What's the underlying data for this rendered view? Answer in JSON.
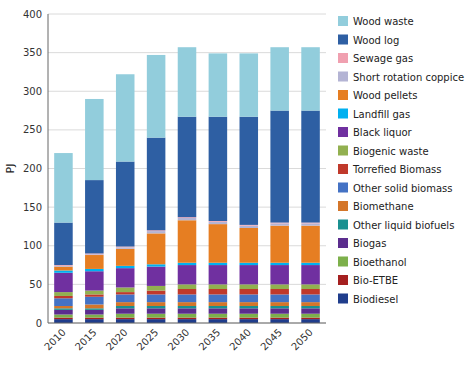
{
  "chart_data": {
    "type": "bar",
    "stacked": true,
    "ylabel": "PJ",
    "categories": [
      "2010",
      "2015",
      "2020",
      "2025",
      "2030",
      "2035",
      "2040",
      "2045",
      "2050"
    ],
    "series": [
      {
        "name": "Biodiesel",
        "color": "#1f3d8c",
        "values": [
          5,
          5,
          5,
          5,
          5,
          5,
          5,
          5,
          5
        ]
      },
      {
        "name": "Bio-ETBE",
        "color": "#a52020",
        "values": [
          2,
          2,
          2,
          2,
          2,
          2,
          2,
          2,
          2
        ]
      },
      {
        "name": "Bioethanol",
        "color": "#7db04b",
        "values": [
          4,
          4,
          5,
          5,
          5,
          5,
          5,
          5,
          5
        ]
      },
      {
        "name": "Biogas",
        "color": "#5b2d8e",
        "values": [
          6,
          6,
          7,
          7,
          7,
          7,
          7,
          7,
          7
        ]
      },
      {
        "name": "Other liquid biofuels",
        "color": "#1a9090",
        "values": [
          2,
          2,
          3,
          3,
          3,
          3,
          3,
          3,
          3
        ]
      },
      {
        "name": "Biomethane",
        "color": "#d4762a",
        "values": [
          3,
          5,
          5,
          5,
          5,
          5,
          5,
          5,
          5
        ]
      },
      {
        "name": "Other solid biomass",
        "color": "#4472c4",
        "values": [
          10,
          10,
          10,
          10,
          10,
          10,
          10,
          10,
          10
        ]
      },
      {
        "name": "Torrefied Biomass",
        "color": "#c0392b",
        "values": [
          3,
          3,
          3,
          5,
          7,
          7,
          7,
          7,
          7
        ]
      },
      {
        "name": "Biogenic waste",
        "color": "#92b050",
        "values": [
          5,
          5,
          6,
          6,
          6,
          6,
          6,
          6,
          6
        ]
      },
      {
        "name": "Black liquor",
        "color": "#7030a0",
        "values": [
          25,
          25,
          25,
          25,
          25,
          25,
          25,
          25,
          25
        ]
      },
      {
        "name": "Landfill gas",
        "color": "#00b0f0",
        "values": [
          3,
          3,
          3,
          3,
          3,
          3,
          3,
          3,
          3
        ]
      },
      {
        "name": "Wood pellets",
        "color": "#e67e22",
        "values": [
          5,
          18,
          22,
          40,
          55,
          50,
          45,
          48,
          48
        ]
      },
      {
        "name": "Short rotation coppice",
        "color": "#b4b4d4",
        "values": [
          1,
          1,
          2,
          3,
          3,
          3,
          3,
          3,
          3
        ]
      },
      {
        "name": "Sewage gas",
        "color": "#f0a0b0",
        "values": [
          1,
          1,
          1,
          1,
          1,
          1,
          1,
          1,
          1
        ]
      },
      {
        "name": "Wood log",
        "color": "#2e5fa3",
        "values": [
          55,
          95,
          110,
          120,
          130,
          135,
          140,
          145,
          145
        ]
      },
      {
        "name": "Wood waste",
        "color": "#92cddc",
        "values": [
          90,
          105,
          113,
          107,
          90,
          82,
          82,
          82,
          82
        ]
      }
    ],
    "ylim": [
      0,
      400
    ],
    "yticks": [
      0,
      50,
      100,
      150,
      200,
      250,
      300,
      350,
      400
    ],
    "grid": true,
    "legend": "right"
  }
}
